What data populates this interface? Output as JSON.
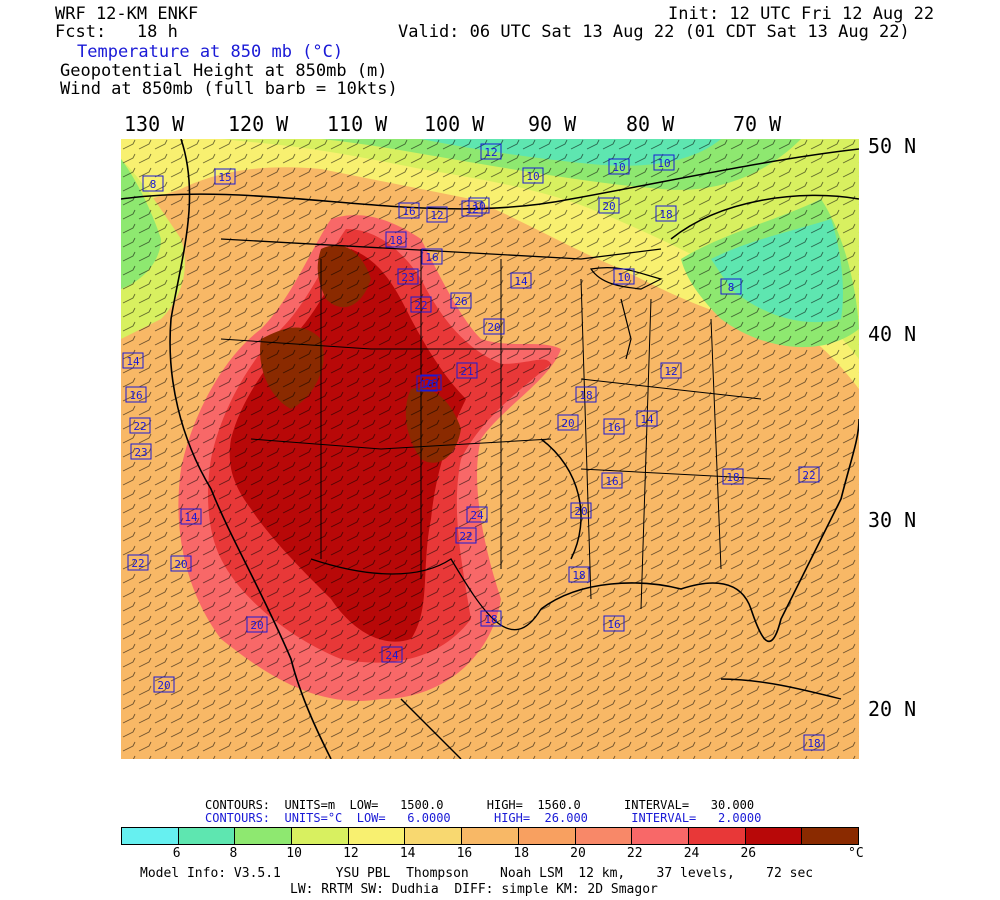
{
  "header": {
    "model": "WRF 12-KM ENKF",
    "fcst": "Fcst:   18 h",
    "init": "Init: 12 UTC Fri 12 Aug 22",
    "valid": "Valid: 06 UTC Sat 13 Aug 22 (01 CDT Sat 13 Aug 22)",
    "field1": "Temperature at 850 mb (°C)",
    "field2": "Geopotential Height at 850mb (m)",
    "field3": "Wind at 850mb (full barb = 10kts)"
  },
  "longitudes": [
    "130 W",
    "120 W",
    "110 W",
    "100 W",
    "90 W",
    "80 W",
    "70 W"
  ],
  "latitudes": [
    "50 N",
    "40 N",
    "30 N",
    "20 N"
  ],
  "contour_info": {
    "line1": "CONTOURS:  UNITS=m  LOW=   1500.0      HIGH=  1560.0      INTERVAL=   30.000",
    "line2": "CONTOURS:  UNITS=°C  LOW=   6.0000      HIGH=  26.000      INTERVAL=   2.0000"
  },
  "colorbar": {
    "colors": [
      "#66f0f0",
      "#5ee6b0",
      "#8ee870",
      "#d8f060",
      "#f8f070",
      "#f8d870",
      "#f8b866",
      "#f8a060",
      "#f88868",
      "#f86868",
      "#e83838",
      "#b80808",
      "#8a2a00"
    ],
    "ticks": [
      "6",
      "8",
      "10",
      "12",
      "14",
      "16",
      "18",
      "20",
      "22",
      "24",
      "26"
    ],
    "unit": "°C"
  },
  "footer": {
    "line1": "Model Info: V3.5.1       YSU PBL  Thompson    Noah LSM  12 km,    37 levels,    72 sec",
    "line2": "LW: RRTM SW: Dudhia  DIFF: simple KM: 2D Smagor"
  },
  "map_labels": [
    "8",
    "15",
    "12",
    "10",
    "10",
    "10",
    "18",
    "16",
    "12",
    "12",
    "10",
    "20",
    "18",
    "16",
    "23",
    "22",
    "26",
    "14",
    "10",
    "20",
    "8",
    "14",
    "16",
    "21",
    "12",
    "16",
    "18",
    "20",
    "14",
    "26",
    "16",
    "16",
    "22",
    "14",
    "23",
    "24",
    "22",
    "22",
    "18",
    "16",
    "20",
    "18",
    "22",
    "20",
    "24",
    "20",
    "18",
    "20",
    "18"
  ]
}
